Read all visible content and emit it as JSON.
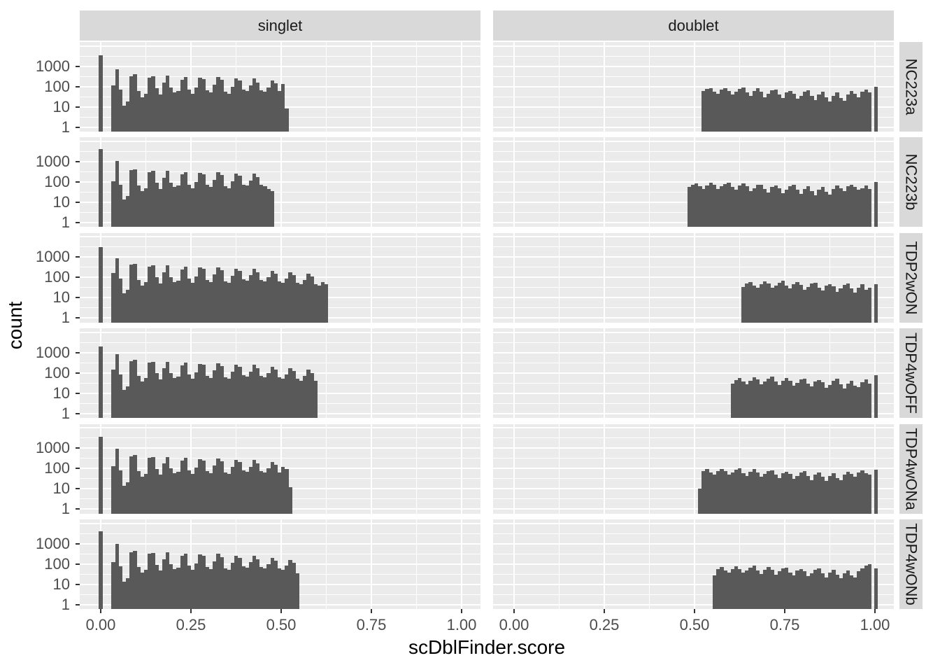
{
  "figure": {
    "xlabel": "scDblFinder.score",
    "ylabel": "count",
    "col_facets": [
      "singlet",
      "doublet"
    ],
    "row_facets": [
      "NC223a",
      "NC223b",
      "TDP2wON",
      "TDP4wOFF",
      "TDP4wONa",
      "TDP4wONb"
    ],
    "x_tick_labels": [
      "0.00",
      "0.25",
      "0.50",
      "0.75",
      "1.00"
    ],
    "x_tick_values": [
      0,
      0.25,
      0.5,
      0.75,
      1.0
    ],
    "y_tick_labels": [
      "1000",
      "100",
      "10",
      "1"
    ],
    "y_tick_values": [
      1000,
      100,
      10,
      1
    ],
    "colors": {
      "bar": "#595959",
      "panel_bg": "#ebebeb",
      "strip_bg": "#d9d9d9",
      "grid": "#ffffff",
      "axis_text": "#4d4d4d",
      "title_text": "#000000",
      "tick_mark": "#333333"
    }
  },
  "chart_data": {
    "type": "bar",
    "subtype": "faceted-histogram",
    "title": "",
    "xlabel": "scDblFinder.score",
    "ylabel": "count",
    "y_scale": "log10",
    "xlim": [
      -0.055,
      1.055
    ],
    "ylim_counts": [
      1,
      10000
    ],
    "grid": "on",
    "legend": "none",
    "binwidth": 0.01,
    "col_facets": [
      "singlet",
      "doublet"
    ],
    "row_facets": [
      "NC223a",
      "NC223b",
      "TDP2wON",
      "TDP4wOFF",
      "TDP4wONa",
      "TDP4wONb"
    ],
    "panels": [
      {
        "row": "NC223a",
        "col": "singlet",
        "zero_spike": {
          "x": 0.0,
          "count": 3500
        },
        "bins_start": 0.03,
        "counts": [
          110,
          700,
          70,
          11,
          18,
          320,
          390,
          60,
          30,
          45,
          260,
          310,
          85,
          40,
          150,
          340,
          90,
          50,
          60,
          210,
          290,
          70,
          45,
          90,
          270,
          230,
          65,
          50,
          120,
          290,
          210,
          55,
          45,
          100,
          240,
          190,
          70,
          60,
          110,
          250,
          160,
          65,
          55,
          90,
          190,
          140,
          60,
          130,
          8
        ]
      },
      {
        "row": "NC223a",
        "col": "doublet",
        "end_spike": {
          "x": 1.0,
          "count": 95
        },
        "bins_start": 0.52,
        "counts": [
          60,
          75,
          80,
          55,
          45,
          70,
          85,
          60,
          40,
          55,
          75,
          90,
          50,
          35,
          60,
          80,
          55,
          30,
          45,
          65,
          70,
          40,
          28,
          50,
          60,
          45,
          25,
          35,
          55,
          65,
          35,
          22,
          40,
          55,
          30,
          18,
          35,
          50,
          28,
          20,
          40,
          60,
          45,
          30,
          55,
          70,
          50
        ]
      },
      {
        "row": "NC223b",
        "col": "singlet",
        "zero_spike": {
          "x": 0.0,
          "count": 4300
        },
        "bins_start": 0.03,
        "counts": [
          110,
          1050,
          70,
          14,
          20,
          380,
          430,
          65,
          35,
          50,
          300,
          340,
          90,
          45,
          160,
          360,
          95,
          55,
          65,
          230,
          310,
          75,
          50,
          100,
          280,
          240,
          70,
          55,
          130,
          300,
          220,
          60,
          50,
          110,
          250,
          200,
          75,
          65,
          115,
          260,
          170,
          70,
          60,
          45,
          35
        ]
      },
      {
        "row": "NC223b",
        "col": "doublet",
        "end_spike": {
          "x": 1.0,
          "count": 100
        },
        "bins_start": 0.48,
        "counts": [
          55,
          70,
          85,
          60,
          45,
          65,
          90,
          70,
          45,
          60,
          80,
          95,
          55,
          40,
          65,
          85,
          60,
          35,
          50,
          70,
          75,
          45,
          30,
          55,
          65,
          50,
          28,
          40,
          60,
          70,
          40,
          25,
          45,
          60,
          35,
          22,
          40,
          55,
          32,
          24,
          45,
          65,
          50,
          35,
          60,
          75,
          55,
          40,
          50,
          65,
          45
        ]
      },
      {
        "row": "TDP2wON",
        "col": "singlet",
        "zero_spike": {
          "x": 0.0,
          "count": 3000
        },
        "bins_start": 0.03,
        "counts": [
          160,
          900,
          90,
          16,
          25,
          420,
          480,
          75,
          40,
          60,
          330,
          380,
          100,
          50,
          180,
          390,
          105,
          60,
          70,
          250,
          340,
          85,
          55,
          110,
          300,
          260,
          75,
          60,
          140,
          320,
          230,
          65,
          55,
          120,
          270,
          210,
          80,
          70,
          125,
          270,
          180,
          75,
          65,
          100,
          210,
          150,
          65,
          55,
          90,
          180,
          130,
          55,
          45,
          75,
          150,
          110,
          45,
          40,
          60,
          45
        ]
      },
      {
        "row": "TDP2wON",
        "col": "doublet",
        "end_spike": {
          "x": 1.0,
          "count": 45
        },
        "bins_start": 0.63,
        "counts": [
          35,
          50,
          60,
          40,
          30,
          45,
          65,
          50,
          30,
          40,
          55,
          70,
          40,
          28,
          45,
          60,
          42,
          25,
          35,
          50,
          55,
          32,
          22,
          40,
          48,
          36,
          20,
          28,
          42,
          52,
          28,
          18,
          32,
          45,
          25,
          30
        ]
      },
      {
        "row": "TDP4wOFF",
        "col": "singlet",
        "zero_spike": {
          "x": 0.0,
          "count": 2000
        },
        "bins_start": 0.03,
        "counts": [
          140,
          800,
          85,
          15,
          22,
          390,
          440,
          70,
          38,
          55,
          310,
          350,
          95,
          48,
          170,
          360,
          100,
          55,
          65,
          240,
          320,
          80,
          52,
          105,
          280,
          245,
          72,
          58,
          130,
          300,
          215,
          62,
          52,
          115,
          255,
          200,
          76,
          66,
          118,
          255,
          170,
          70,
          60,
          95,
          200,
          140,
          60,
          50,
          85,
          170,
          120,
          50,
          42,
          70,
          140,
          100,
          42
        ]
      },
      {
        "row": "TDP4wOFF",
        "col": "doublet",
        "end_spike": {
          "x": 1.0,
          "count": 75
        },
        "bins_start": 0.6,
        "counts": [
          30,
          45,
          55,
          38,
          28,
          42,
          60,
          46,
          28,
          38,
          52,
          65,
          38,
          26,
          42,
          56,
          40,
          24,
          33,
          47,
          52,
          30,
          21,
          38,
          45,
          34,
          19,
          26,
          40,
          50,
          27,
          17,
          30,
          42,
          24,
          20,
          35,
          48,
          30
        ]
      },
      {
        "row": "TDP4wONa",
        "col": "singlet",
        "zero_spike": {
          "x": 0.0,
          "count": 3600
        },
        "bins_start": 0.03,
        "counts": [
          130,
          900,
          80,
          14,
          20,
          400,
          460,
          72,
          38,
          55,
          320,
          360,
          95,
          48,
          170,
          370,
          100,
          58,
          68,
          245,
          330,
          82,
          53,
          108,
          290,
          250,
          73,
          58,
          135,
          310,
          220,
          63,
          53,
          115,
          260,
          205,
          78,
          68,
          120,
          260,
          175,
          72,
          62,
          98,
          205,
          150,
          65,
          120,
          90,
          12
        ]
      },
      {
        "row": "TDP4wONa",
        "col": "doublet",
        "end_spike": {
          "x": 1.0,
          "count": 85
        },
        "bins_start": 0.51,
        "counts": [
          10,
          75,
          90,
          65,
          50,
          72,
          95,
          72,
          48,
          62,
          85,
          100,
          58,
          42,
          68,
          90,
          62,
          38,
          52,
          74,
          80,
          48,
          32,
          58,
          70,
          52,
          30,
          42,
          64,
          75,
          42,
          27,
          48,
          64,
          38,
          24,
          42,
          58,
          34,
          26,
          48,
          70,
          52,
          38,
          64,
          80,
          58,
          50
        ]
      },
      {
        "row": "TDP4wONb",
        "col": "singlet",
        "zero_spike": {
          "x": 0.0,
          "count": 3900
        },
        "bins_start": 0.03,
        "counts": [
          120,
          1000,
          75,
          13,
          19,
          380,
          440,
          68,
          36,
          52,
          310,
          350,
          92,
          46,
          165,
          360,
          98,
          56,
          66,
          240,
          320,
          80,
          52,
          105,
          285,
          245,
          72,
          57,
          132,
          305,
          215,
          62,
          52,
          112,
          255,
          200,
          76,
          66,
          118,
          255,
          170,
          70,
          60,
          96,
          200,
          145,
          62,
          52,
          85,
          160,
          115,
          35
        ]
      },
      {
        "row": "TDP4wONb",
        "col": "doublet",
        "end_spike": {
          "x": 1.0,
          "count": 60
        },
        "bins_start": 0.55,
        "counts": [
          28,
          55,
          68,
          48,
          38,
          56,
          75,
          56,
          36,
          48,
          66,
          80,
          46,
          32,
          52,
          70,
          50,
          30,
          42,
          60,
          64,
          38,
          26,
          46,
          56,
          42,
          24,
          34,
          50,
          60,
          34,
          22,
          38,
          52,
          30,
          20,
          34,
          48,
          28,
          22,
          45,
          60,
          80,
          100
        ]
      }
    ]
  }
}
